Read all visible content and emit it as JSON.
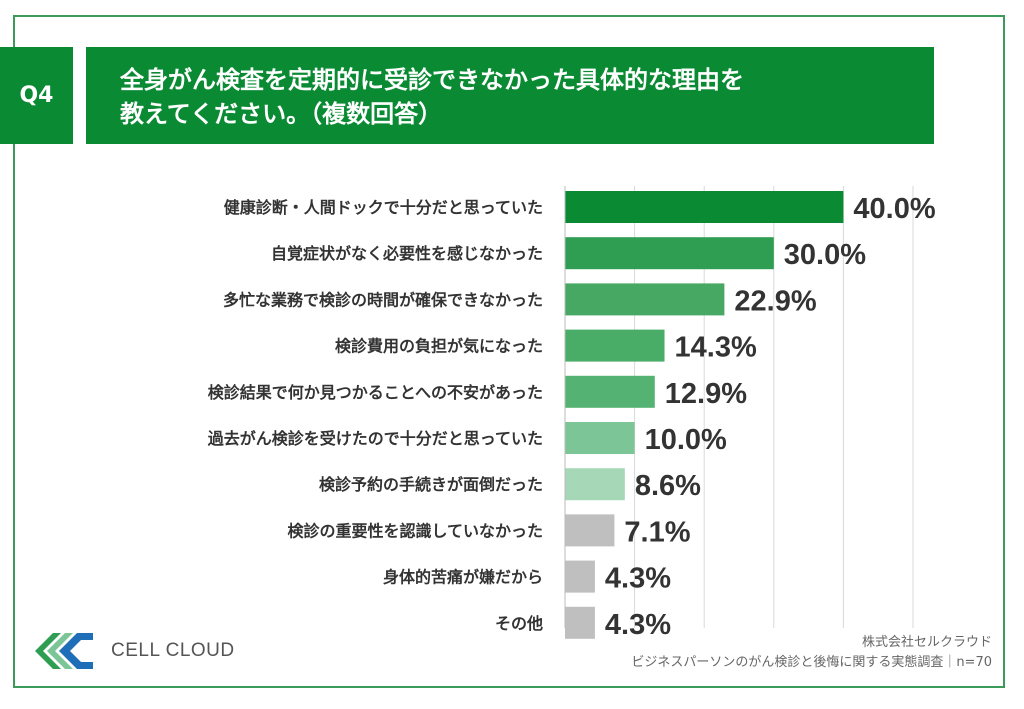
{
  "header": {
    "badge": "Q4",
    "title_line1": "全身がん検査を定期的に受診できなかった具体的な理由を",
    "title_line2": "教えてください。（複数回答）"
  },
  "chart_data": {
    "type": "bar",
    "orientation": "horizontal",
    "categories": [
      "健康診断・人間ドックで十分だと思っていた",
      "自覚症状がなく必要性を感じなかった",
      "多忙な業務で検診の時間が確保できなかった",
      "検診費用の負担が気になった",
      "検診結果で何か見つかることへの不安があった",
      "過去がん検診を受けたので十分だと思っていた",
      "検診予約の手続きが面倒だった",
      "検診の重要性を認識していなかった",
      "身体的苦痛が嫌だから",
      "その他"
    ],
    "values": [
      40.0,
      30.0,
      22.9,
      14.3,
      12.9,
      10.0,
      8.6,
      7.1,
      4.3,
      4.3
    ],
    "value_labels": [
      "40.0%",
      "30.0%",
      "22.9%",
      "14.3%",
      "12.9%",
      "10.0%",
      "8.6%",
      "7.1%",
      "4.3%",
      "4.3%"
    ],
    "colors": [
      "#0a8a33",
      "#2f9e52",
      "#47a864",
      "#49ad67",
      "#54b372",
      "#7cc597",
      "#a6d8b8",
      "#bfbfbf",
      "#bfbfbf",
      "#bfbfbf"
    ],
    "xlim": [
      0,
      50
    ],
    "grid": true,
    "title": "",
    "xlabel": "",
    "ylabel": ""
  },
  "footer": {
    "logo_text": "CELL CLOUD",
    "source_line1": "株式会社セルクラウド",
    "source_line2": "ビジネスパーソンのがん検診と後悔に関する実態調査｜n=70"
  }
}
